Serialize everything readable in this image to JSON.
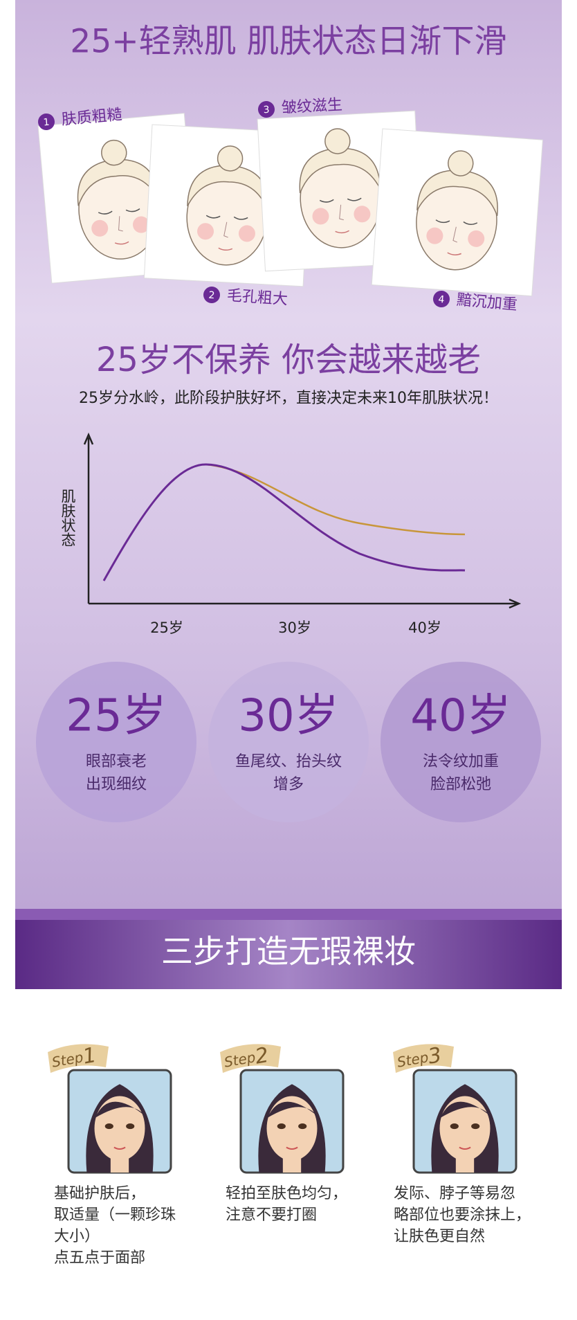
{
  "header": {
    "title": "25+轻熟肌 肌肤状态日渐下滑"
  },
  "skin_issues": [
    {
      "number": "1",
      "label": "肤质粗糙"
    },
    {
      "number": "2",
      "label": "毛孔粗大"
    },
    {
      "number": "3",
      "label": "皱纹滋生"
    },
    {
      "number": "4",
      "label": "黯沉加重"
    }
  ],
  "aging": {
    "title": "25岁不保养 你会越来越老",
    "subtitle": "25岁分水岭，此阶段护肤好坏，直接决定未来10年肌肤状况！",
    "y_axis_label": "肌肤状态",
    "x_labels": [
      "25岁",
      "30岁",
      "40岁"
    ]
  },
  "stages": [
    {
      "age": "25岁",
      "lines": [
        "眼部衰老",
        "出现细纹"
      ]
    },
    {
      "age": "30岁",
      "lines": [
        "鱼尾纹、抬头纹",
        "增多"
      ]
    },
    {
      "age": "40岁",
      "lines": [
        "法令纹加重",
        "脸部松弛"
      ]
    }
  ],
  "banner": {
    "title": "三步打造无瑕裸妆"
  },
  "steps": [
    {
      "badge": "Step",
      "number": "1",
      "lines": [
        "基础护肤后，",
        "取适量（一颗珍珠",
        "大小）",
        "点五点于面部"
      ]
    },
    {
      "badge": "Step",
      "number": "2",
      "lines": [
        "轻拍至肤色均匀，",
        "注意不要打圈"
      ]
    },
    {
      "badge": "Step",
      "number": "3",
      "lines": [
        "发际、脖子等易忽",
        "略部位也要涂抹上，",
        "让肤色更自然"
      ]
    }
  ]
}
